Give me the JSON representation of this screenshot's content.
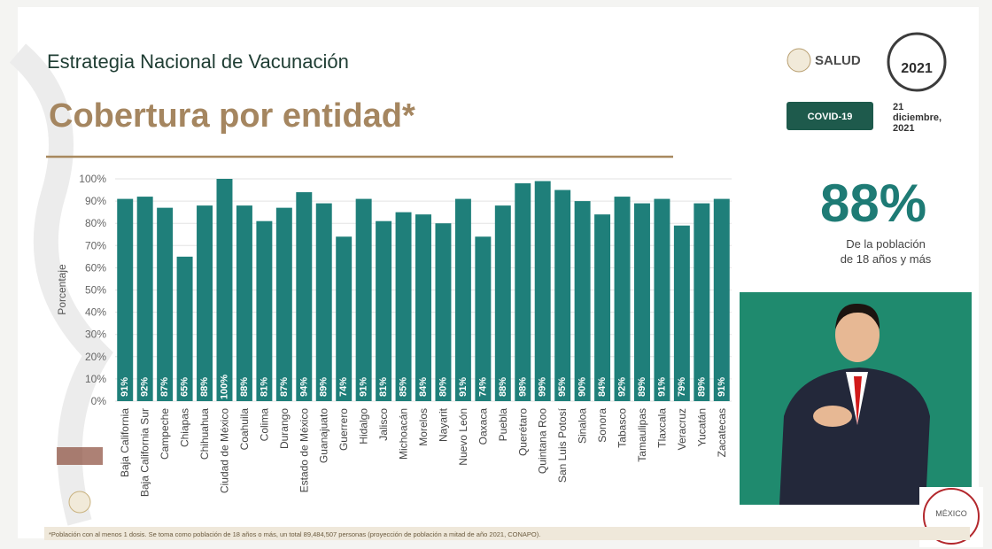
{
  "header": {
    "title": "Estrategia Nacional de Vacunación",
    "subtitle": "Cobertura por entidad*"
  },
  "logos": {
    "salud": "SALUD",
    "covid": "COVID-19",
    "date": [
      "21",
      "diciembre,",
      "2021"
    ],
    "corner": "MÉXICO"
  },
  "stat": {
    "value": "88%",
    "caption": [
      "De la población",
      "de 18 años y más"
    ]
  },
  "footnote": "*Población con al menos 1 dosis. Se toma como población de 18 años o más, un total 89,484,507 personas (proyección de población a mitad de año 2021, CONAPO).",
  "chart_data": {
    "type": "bar",
    "ylabel": "Porcentaje",
    "categories": [
      "Baja California",
      "Baja California Sur",
      "Campeche",
      "Chiapas",
      "Chihuahua",
      "Ciudad de México",
      "Coahuila",
      "Colima",
      "Durango",
      "Estado de México",
      "Guanajuato",
      "Guerrero",
      "Hidalgo",
      "Jalisco",
      "Michoacán",
      "Morelos",
      "Nayarit",
      "Nuevo León",
      "Oaxaca",
      "Puebla",
      "Querétaro",
      "Quintana Roo",
      "San Luis Potosí",
      "Sinaloa",
      "Sonora",
      "Tabasco",
      "Tamaulipas",
      "Tlaxcala",
      "Veracruz",
      "Yucatán",
      "Zacatecas"
    ],
    "values": [
      91,
      92,
      87,
      65,
      88,
      100,
      88,
      81,
      87,
      94,
      89,
      74,
      91,
      81,
      85,
      84,
      80,
      91,
      74,
      88,
      98,
      99,
      95,
      90,
      84,
      92,
      89,
      91,
      79,
      89,
      91
    ],
    "value_labels": [
      "91%",
      "92%",
      "87%",
      "65%",
      "88%",
      "100%",
      "88%",
      "81%",
      "87%",
      "94%",
      "89%",
      "74%",
      "91%",
      "81%",
      "85%",
      "84%",
      "80%",
      "91%",
      "74%",
      "88%",
      "98%",
      "99%",
      "95%",
      "90%",
      "84%",
      "92%",
      "89%",
      "91%",
      "79%",
      "89%",
      "91%"
    ],
    "color": "#1f7f7a",
    "ylim": [
      0,
      100
    ],
    "yticks": [
      {
        "value": 0,
        "label": "0%"
      },
      {
        "value": 10,
        "label": "10%"
      },
      {
        "value": 20,
        "label": "20%"
      },
      {
        "value": 30,
        "label": "30%"
      },
      {
        "value": 40,
        "label": "40%"
      },
      {
        "value": 50,
        "label": "50%"
      },
      {
        "value": 60,
        "label": "60%"
      },
      {
        "value": 70,
        "label": "70%"
      },
      {
        "value": 80,
        "label": "80%"
      },
      {
        "value": 90,
        "label": "90%"
      },
      {
        "value": 100,
        "label": "100%"
      }
    ],
    "grid": true
  }
}
